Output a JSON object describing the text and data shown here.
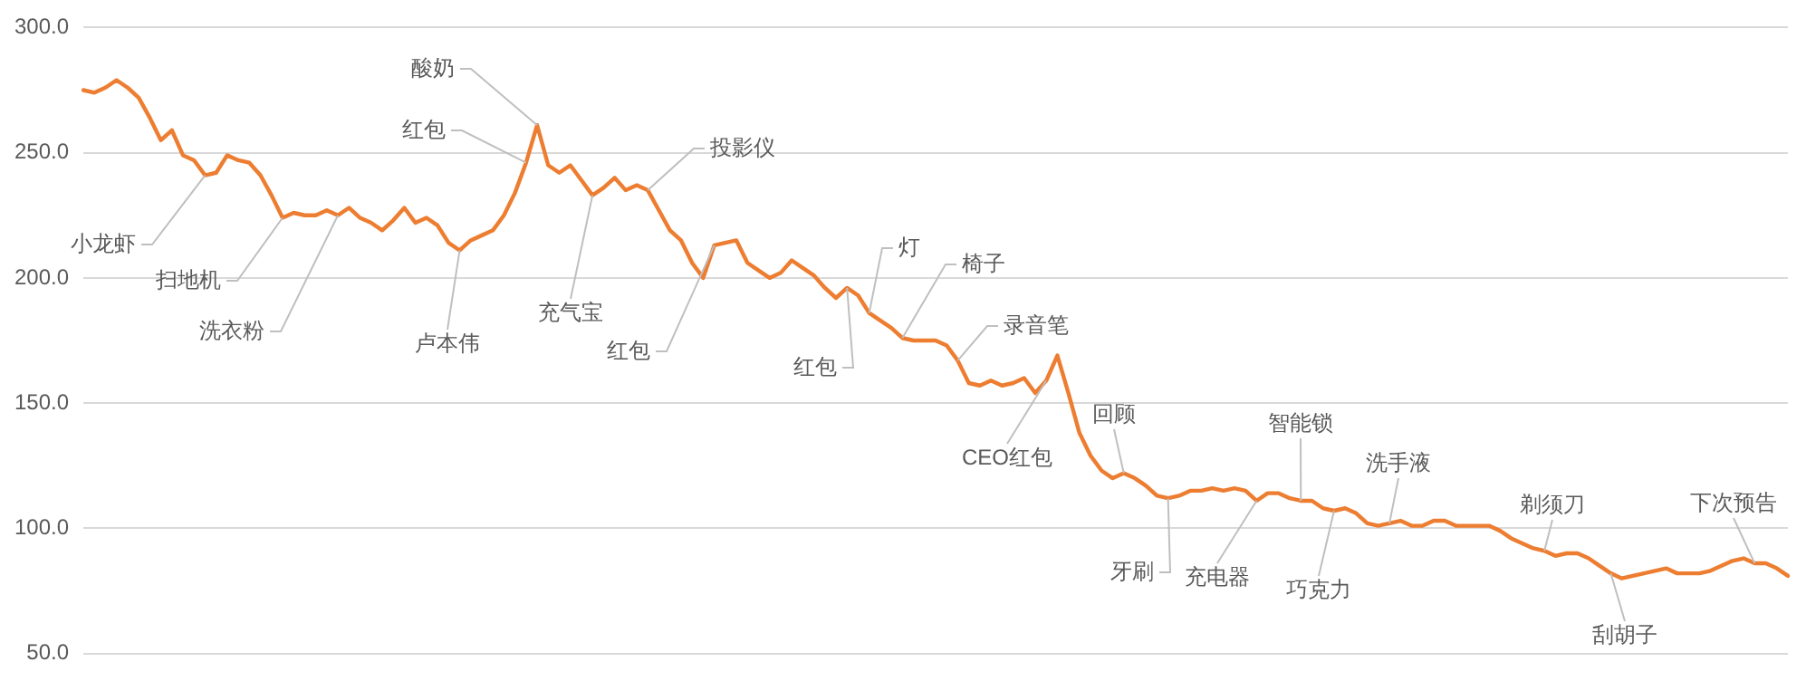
{
  "chart_data": {
    "type": "line",
    "color": "#ed7d31",
    "marker": "none",
    "grid": "y",
    "tick_labels": "y",
    "ylim": [
      50,
      300
    ],
    "yticks": [
      {
        "value": 50,
        "label": "50.0"
      },
      {
        "value": 100,
        "label": "100.0"
      },
      {
        "value": 150,
        "label": "150.0"
      },
      {
        "value": 200,
        "label": "200.0"
      },
      {
        "value": 250,
        "label": "250.0"
      },
      {
        "value": 300,
        "label": "300.0"
      }
    ],
    "categories": [
      null,
      null,
      null,
      null,
      null,
      null,
      null,
      null,
      null,
      null,
      null,
      null,
      null,
      null,
      null,
      null,
      null,
      null,
      null,
      null,
      null,
      null,
      null,
      null,
      null,
      null,
      null,
      null,
      null,
      null,
      null,
      null,
      null,
      null,
      null,
      null,
      null,
      null,
      null,
      null,
      null,
      null,
      null,
      null,
      null,
      null,
      null,
      null,
      null,
      null,
      null,
      null,
      null,
      null,
      null,
      null,
      null,
      null,
      null,
      null,
      null,
      null,
      null,
      null,
      null,
      null,
      null,
      null,
      null,
      null,
      null,
      null,
      null,
      null,
      null,
      null,
      null,
      null,
      null,
      null,
      null,
      null,
      null,
      null,
      null,
      null,
      null,
      null,
      null,
      null,
      null,
      null,
      null,
      null,
      null,
      null,
      null,
      null,
      null,
      null,
      null,
      null,
      null,
      null,
      null,
      null,
      null,
      null,
      null,
      null,
      null,
      null,
      null,
      null,
      null,
      null,
      null,
      null,
      null,
      null,
      null,
      null,
      null,
      null,
      null,
      null,
      null,
      null,
      null,
      null,
      null,
      null,
      null,
      null,
      null,
      null,
      null,
      null,
      null,
      null,
      null,
      null,
      null,
      null,
      null,
      null,
      null,
      null,
      null,
      null,
      null,
      null,
      null,
      null,
      null
    ],
    "values": [
      275,
      274,
      276,
      279,
      276,
      272,
      264,
      255,
      259,
      249,
      247,
      241,
      242,
      249,
      247,
      246,
      241,
      233,
      224,
      226,
      225,
      225,
      227,
      225,
      228,
      224,
      222,
      219,
      223,
      228,
      222,
      224,
      221,
      214,
      211,
      215,
      217,
      219,
      225,
      234,
      246,
      261,
      245,
      242,
      245,
      239,
      233,
      236,
      240,
      235,
      237,
      235,
      227,
      219,
      215,
      206,
      200,
      213,
      214,
      215,
      206,
      203,
      200,
      202,
      207,
      204,
      201,
      196,
      192,
      196,
      193,
      186,
      183,
      180,
      176,
      175,
      175,
      175,
      173,
      167,
      158,
      157,
      159,
      157,
      158,
      160,
      154,
      159,
      169,
      154,
      138,
      129,
      123,
      120,
      122,
      120,
      117,
      113,
      112,
      113,
      115,
      115,
      116,
      115,
      116,
      115,
      111,
      114,
      114,
      112,
      111,
      111,
      108,
      107,
      108,
      106,
      102,
      101,
      102,
      103,
      101,
      101,
      103,
      103,
      101,
      101,
      101,
      101,
      99,
      96,
      94,
      92,
      91,
      89,
      90,
      90,
      88,
      85,
      82,
      80,
      81,
      82,
      83,
      84,
      82,
      82,
      82,
      83,
      85,
      87,
      88,
      86,
      86,
      84,
      81
    ],
    "annotations": [
      "小龙虾",
      "扫地机",
      "洗衣粉",
      "卢本伟",
      "酸奶",
      "红包",
      "充气宝",
      "投影仪",
      "红包",
      "红包",
      "灯",
      "椅子",
      "录音笔",
      "CEO红包",
      "回顾",
      "牙刷",
      "充电器",
      "智能锁",
      "巧克力",
      "洗手液",
      "剃须刀",
      "刮胡子",
      "下次预告"
    ]
  }
}
